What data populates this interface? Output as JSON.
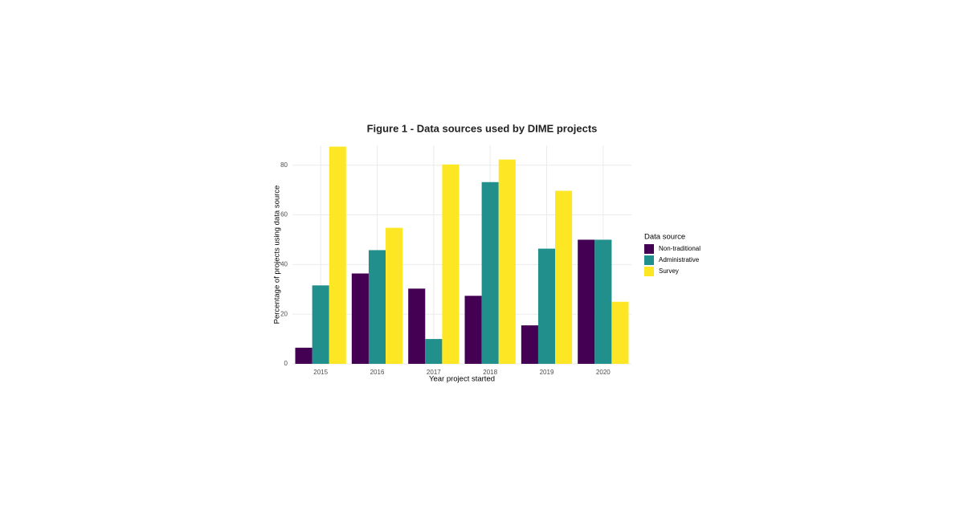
{
  "chart_data": {
    "type": "bar",
    "title": "Figure 1 - Data sources used by DIME projects",
    "x_label": "Year project started",
    "y_label": "Percentage of projects using data source",
    "categories": [
      "2015",
      "2016",
      "2017",
      "2018",
      "2019",
      "2020"
    ],
    "series": [
      {
        "name": "Non-traditional",
        "color": "#440154",
        "values": [
          6.5,
          36.4,
          30.3,
          27.4,
          15.5,
          50
        ]
      },
      {
        "name": "Administrative",
        "color": "#21908c",
        "values": [
          31.6,
          45.8,
          10,
          73.2,
          46.4,
          50
        ]
      },
      {
        "name": "Survey",
        "color": "#fde725",
        "values": [
          87.5,
          54.8,
          80.3,
          82.3,
          69.7,
          25
        ]
      }
    ],
    "legend_title": "Data source",
    "legend": "right",
    "ylim": [
      0,
      88
    ],
    "yticks": [
      0,
      20,
      40,
      60,
      80
    ],
    "grid": true
  }
}
